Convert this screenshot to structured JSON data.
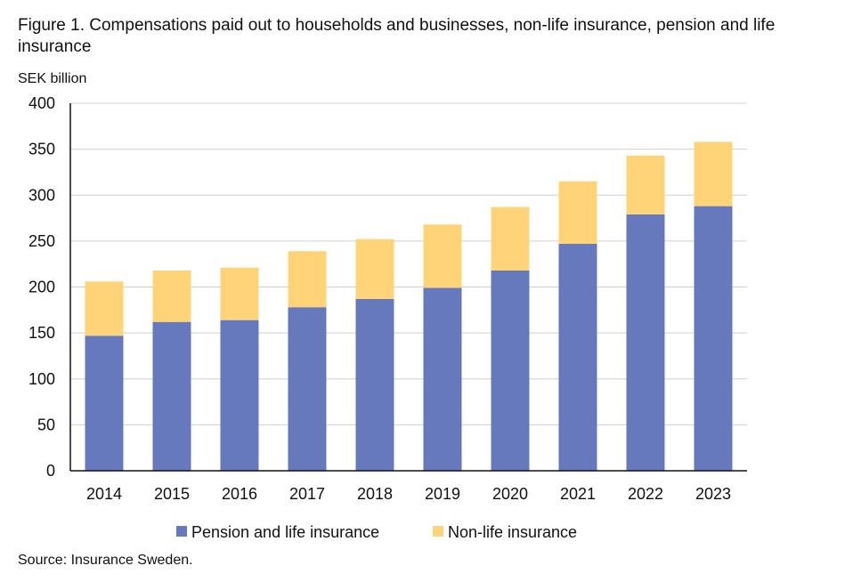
{
  "title": "Figure 1. Compensations paid out to households and businesses, non-life insurance, pension and life insurance",
  "source": "Source: Insurance Sweden.",
  "chart_data": {
    "type": "bar",
    "stacked": true,
    "ylabel": "SEK billion",
    "ylim": [
      0,
      400
    ],
    "yticks": [
      0,
      50,
      100,
      150,
      200,
      250,
      300,
      350,
      400
    ],
    "grid": true,
    "legend_placement": "bottom",
    "categories": [
      "2014",
      "2015",
      "2016",
      "2017",
      "2018",
      "2019",
      "2020",
      "2021",
      "2022",
      "2023"
    ],
    "series": [
      {
        "name": "Pension and life insurance",
        "color": "#6779BD",
        "values": [
          147,
          162,
          164,
          178,
          187,
          199,
          218,
          247,
          279,
          288
        ]
      },
      {
        "name": "Non-life insurance",
        "color": "#FFD479",
        "values": [
          59,
          56,
          57,
          61,
          65,
          69,
          69,
          68,
          64,
          70
        ]
      }
    ]
  }
}
